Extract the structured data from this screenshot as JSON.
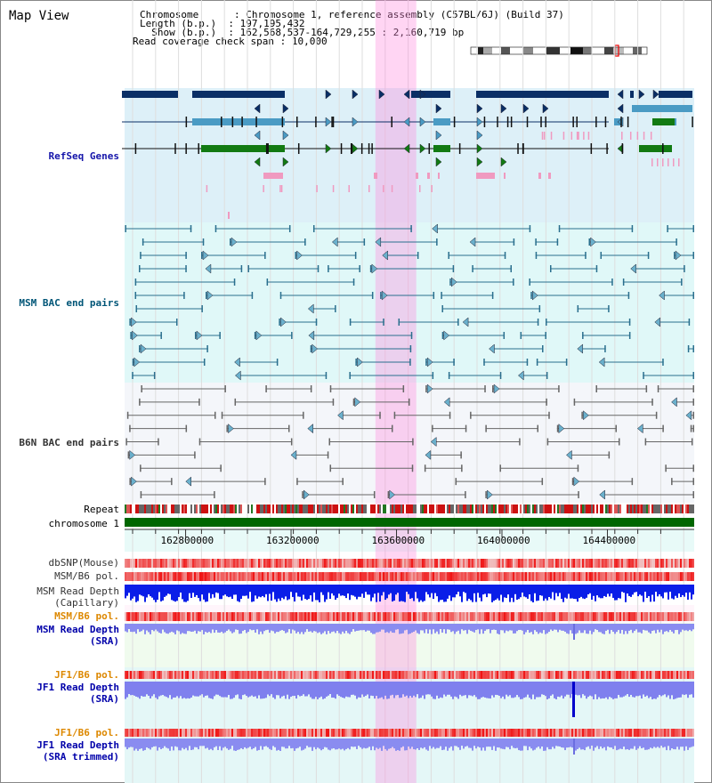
{
  "page": {
    "title": "Map View"
  },
  "info": {
    "chromosome_label": "Chromosome      ",
    "chromosome_value": "Chromosome 1, reference assembly (C57BL/6J) (Build 37)",
    "length_label": "Length (b.p.)  ",
    "length_value": "197,195,432",
    "show_label": "  Show (b.p.)  ",
    "show_value": "162,568,537-164,729,255 : 2,160,719 bp",
    "coverage_label": "Read coverage check span",
    "coverage_value": "10,000",
    "separator": ":"
  },
  "tracks": {
    "refseq": "RefSeq Genes",
    "msm_bac": "MSM BAC end pairs",
    "b6n_bac": "B6N BAC end pairs",
    "repeat": "Repeat",
    "chromosome": "chromosome 1",
    "dbsnp": "dbSNP(Mouse)",
    "msm_pol": "MSM/B6 pol.",
    "msm_depth_1": "MSM Read Depth",
    "msm_depth_2": "(Capillary)",
    "msm_pol2": "MSM/B6 pol.",
    "msm_sra_1": "MSM Read Depth",
    "msm_sra_2": "(SRA)",
    "jf1_pol": "JF1/B6 pol.",
    "jf1_sra_1": "JF1 Read Depth",
    "jf1_sra_2": "(SRA)",
    "jf1_pol2": "JF1/B6 pol.",
    "jf1_trim_1": "JF1 Read Depth",
    "jf1_trim_2": "(SRA trimmed)"
  },
  "axis": {
    "ticks": [
      162800000,
      163200000,
      163600000,
      164000000,
      164400000
    ],
    "range": [
      162568537,
      164729255
    ]
  },
  "highlight": {
    "start": 163520000,
    "end": 163675000
  },
  "colors": {
    "refseq_label": "#1515aa",
    "msm_label": "#005577",
    "b6n_label": "#333333",
    "pol_orange": "#dd8800",
    "depth_blue": "#0000aa",
    "refseq_bg": "#ddf0f8",
    "msm_bg": "#e0f8f8",
    "b6n_bg": "#f4f6fa"
  }
}
